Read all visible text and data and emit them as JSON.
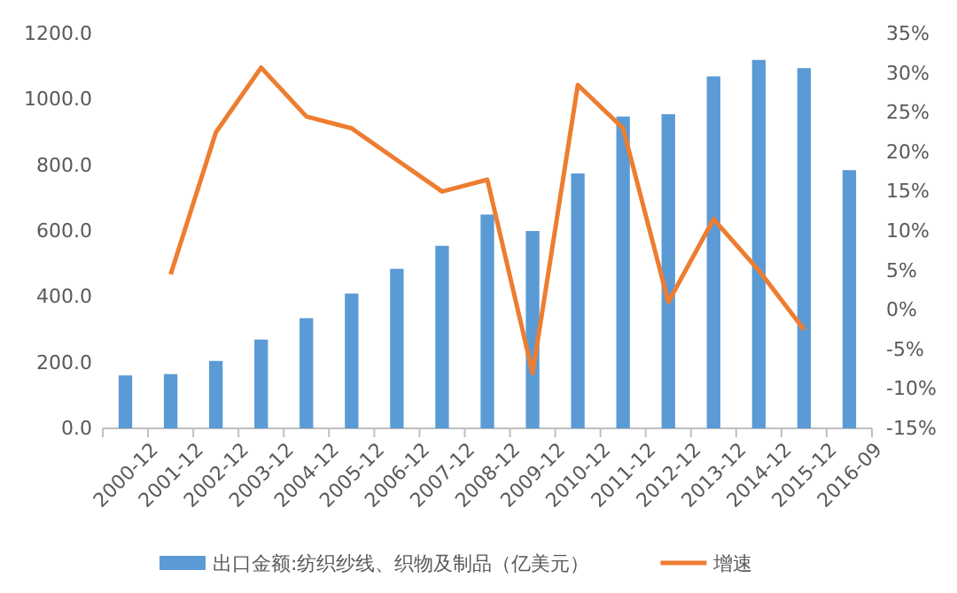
{
  "chart_data": {
    "type": "bar",
    "categories": [
      "2000-12",
      "2001-12",
      "2002-12",
      "2003-12",
      "2004-12",
      "2005-12",
      "2006-12",
      "2007-12",
      "2008-12",
      "2009-12",
      "2010-12",
      "2011-12",
      "2012-12",
      "2013-12",
      "2014-12",
      "2015-12",
      "2016-09"
    ],
    "series": [
      {
        "name": "出口金额:纺织纱线、织物及制品（亿美元）",
        "color": "#5b9bd5",
        "values": [
          161,
          165,
          205,
          270,
          335,
          410,
          485,
          555,
          650,
          600,
          775,
          948,
          955,
          1070,
          1120,
          1095,
          785
        ]
      },
      {
        "name": "增速",
        "type": "line",
        "axis": "y2",
        "color": "#ed7d31",
        "values": [
          null,
          4.5,
          22.5,
          30.7,
          24.5,
          23,
          19,
          15,
          16.5,
          -8,
          28.5,
          23,
          1,
          11.5,
          5,
          -2.5,
          null
        ]
      }
    ],
    "ylim": [
      0,
      1200
    ],
    "yticks": [
      {
        "value": 0,
        "label": "0.0"
      },
      {
        "value": 200,
        "label": "200.0"
      },
      {
        "value": 400,
        "label": "400.0"
      },
      {
        "value": 600,
        "label": "600.0"
      },
      {
        "value": 800,
        "label": "800.0"
      },
      {
        "value": 1000,
        "label": "1000.0"
      },
      {
        "value": 1200,
        "label": "1200.0"
      }
    ],
    "y2lim": [
      -15,
      35
    ],
    "y2ticks": [
      {
        "value": -15,
        "label": "-15%"
      },
      {
        "value": -10,
        "label": "-10%"
      },
      {
        "value": -5,
        "label": "-5%"
      },
      {
        "value": 0,
        "label": "0%"
      },
      {
        "value": 5,
        "label": "5%"
      },
      {
        "value": 10,
        "label": "10%"
      },
      {
        "value": 15,
        "label": "15%"
      },
      {
        "value": 20,
        "label": "20%"
      },
      {
        "value": 25,
        "label": "25%"
      },
      {
        "value": 30,
        "label": "30%"
      },
      {
        "value": 35,
        "label": "35%"
      }
    ],
    "legend": "bottom",
    "grid": false,
    "marker": "none",
    "line_style": "solid"
  }
}
